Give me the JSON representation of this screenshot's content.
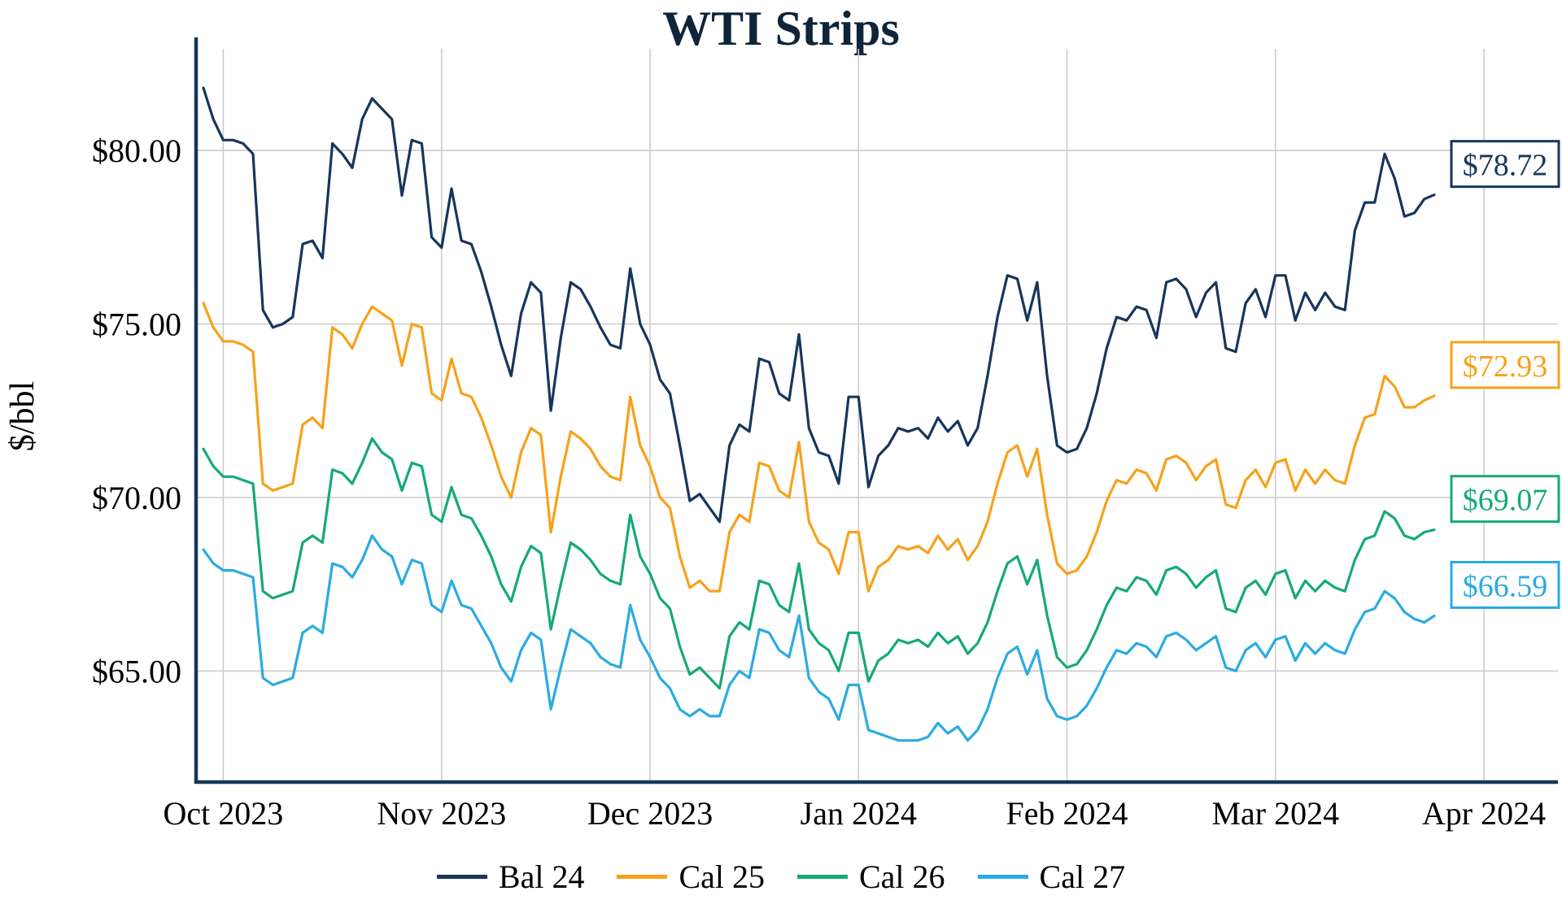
{
  "chart_data": {
    "type": "line",
    "title": "WTI Strips",
    "ylabel": "$/bbl",
    "xlabel": "",
    "grid": true,
    "legend_position": "bottom",
    "axis_color": "#16365c",
    "grid_color": "#cccccc",
    "ylim": [
      61.8,
      82.93
    ],
    "y_ticks": [
      65,
      70,
      75,
      80
    ],
    "y_tick_labels": [
      "$65.00",
      "$70.00",
      "$75.00",
      "$80.00"
    ],
    "x_tick_labels": [
      "Oct 2023",
      "Nov 2023",
      "Dec 2023",
      "Jan 2024",
      "Feb 2024",
      "Mar 2024",
      "Apr 2024"
    ],
    "x_tick_index": [
      2,
      24,
      45,
      66,
      87,
      108,
      129
    ],
    "x_unit": "trading-day index, Oct 2023 - Mar 2024",
    "series": [
      {
        "id": "bal-24",
        "name": "Bal 24",
        "color": "#16365c",
        "end_label": "$78.72",
        "last_value": 78.72,
        "values": [
          81.8,
          80.9,
          80.3,
          80.3,
          80.2,
          79.9,
          75.4,
          74.9,
          75.0,
          75.2,
          77.3,
          77.4,
          76.9,
          80.2,
          79.9,
          79.5,
          80.9,
          81.5,
          81.2,
          80.9,
          78.7,
          80.3,
          80.2,
          77.5,
          77.2,
          78.9,
          77.4,
          77.3,
          76.5,
          75.5,
          74.4,
          73.5,
          75.3,
          76.2,
          75.9,
          72.5,
          74.6,
          76.2,
          76.0,
          75.5,
          74.9,
          74.4,
          74.3,
          76.6,
          75.0,
          74.4,
          73.4,
          73.0,
          71.5,
          69.9,
          70.1,
          69.7,
          69.3,
          71.5,
          72.1,
          71.9,
          74.0,
          73.9,
          73.0,
          72.8,
          74.7,
          72.0,
          71.3,
          71.2,
          70.4,
          72.9,
          72.9,
          70.3,
          71.2,
          71.5,
          72.0,
          71.9,
          72.0,
          71.7,
          72.3,
          71.9,
          72.2,
          71.5,
          72.0,
          73.5,
          75.2,
          76.4,
          76.3,
          75.1,
          76.2,
          73.5,
          71.5,
          71.3,
          71.4,
          72.0,
          73.0,
          74.3,
          75.2,
          75.1,
          75.5,
          75.4,
          74.6,
          76.2,
          76.3,
          76.0,
          75.2,
          75.9,
          76.2,
          74.3,
          74.2,
          75.6,
          76.0,
          75.2,
          76.4,
          76.4,
          75.1,
          75.9,
          75.4,
          75.9,
          75.5,
          75.4,
          77.7,
          78.5,
          78.5,
          79.9,
          79.2,
          78.1,
          78.2,
          78.6,
          78.72
        ]
      },
      {
        "id": "cal-25",
        "name": "Cal 25",
        "color": "#f7a11a",
        "end_label": "$72.93",
        "last_value": 72.93,
        "values": [
          75.6,
          74.9,
          74.5,
          74.5,
          74.4,
          74.2,
          70.4,
          70.2,
          70.3,
          70.4,
          72.1,
          72.3,
          72.0,
          74.9,
          74.7,
          74.3,
          75.0,
          75.5,
          75.3,
          75.1,
          73.8,
          75.0,
          74.9,
          73.0,
          72.8,
          74.0,
          73.0,
          72.9,
          72.3,
          71.5,
          70.6,
          70.0,
          71.3,
          72.0,
          71.8,
          69.0,
          70.6,
          71.9,
          71.7,
          71.4,
          70.9,
          70.6,
          70.5,
          72.9,
          71.5,
          70.9,
          70.0,
          69.7,
          68.3,
          67.4,
          67.6,
          67.3,
          67.3,
          69.0,
          69.5,
          69.3,
          71.0,
          70.9,
          70.2,
          70.0,
          71.6,
          69.3,
          68.7,
          68.5,
          67.8,
          69.0,
          69.0,
          67.3,
          68.0,
          68.2,
          68.6,
          68.5,
          68.6,
          68.4,
          68.9,
          68.5,
          68.8,
          68.2,
          68.6,
          69.3,
          70.4,
          71.3,
          71.5,
          70.6,
          71.4,
          69.5,
          68.1,
          67.8,
          67.9,
          68.3,
          69.0,
          69.9,
          70.5,
          70.4,
          70.8,
          70.7,
          70.2,
          71.1,
          71.2,
          71.0,
          70.5,
          70.9,
          71.1,
          69.8,
          69.7,
          70.5,
          70.8,
          70.3,
          71.0,
          71.1,
          70.2,
          70.8,
          70.4,
          70.8,
          70.5,
          70.4,
          71.5,
          72.3,
          72.4,
          73.5,
          73.2,
          72.6,
          72.6,
          72.8,
          72.93
        ]
      },
      {
        "id": "cal-26",
        "name": "Cal 26",
        "color": "#15a97a",
        "end_label": "$69.07",
        "last_value": 69.07,
        "values": [
          71.4,
          70.9,
          70.6,
          70.6,
          70.5,
          70.4,
          67.3,
          67.1,
          67.2,
          67.3,
          68.7,
          68.9,
          68.7,
          70.8,
          70.7,
          70.4,
          71.0,
          71.7,
          71.3,
          71.1,
          70.2,
          71.0,
          70.9,
          69.5,
          69.3,
          70.3,
          69.5,
          69.4,
          68.9,
          68.3,
          67.5,
          67.0,
          68.0,
          68.6,
          68.4,
          66.2,
          67.5,
          68.7,
          68.5,
          68.2,
          67.8,
          67.6,
          67.5,
          69.5,
          68.3,
          67.8,
          67.1,
          66.8,
          65.7,
          64.9,
          65.1,
          64.8,
          64.5,
          66.0,
          66.4,
          66.2,
          67.6,
          67.5,
          66.9,
          66.7,
          68.1,
          66.2,
          65.8,
          65.6,
          65.0,
          66.1,
          66.1,
          64.7,
          65.3,
          65.5,
          65.9,
          65.8,
          65.9,
          65.7,
          66.1,
          65.8,
          66.0,
          65.5,
          65.8,
          66.4,
          67.3,
          68.1,
          68.3,
          67.5,
          68.2,
          66.6,
          65.4,
          65.1,
          65.2,
          65.6,
          66.2,
          66.9,
          67.4,
          67.3,
          67.7,
          67.6,
          67.2,
          67.9,
          68.0,
          67.8,
          67.4,
          67.7,
          67.9,
          66.8,
          66.7,
          67.4,
          67.6,
          67.2,
          67.8,
          67.9,
          67.1,
          67.6,
          67.3,
          67.6,
          67.4,
          67.3,
          68.2,
          68.8,
          68.9,
          69.6,
          69.4,
          68.9,
          68.8,
          69.0,
          69.07
        ]
      },
      {
        "id": "cal-27",
        "name": "Cal 27",
        "color": "#2aabe2",
        "end_label": "$66.59",
        "last_value": 66.59,
        "values": [
          68.5,
          68.1,
          67.9,
          67.9,
          67.8,
          67.7,
          64.8,
          64.6,
          64.7,
          64.8,
          66.1,
          66.3,
          66.1,
          68.1,
          68.0,
          67.7,
          68.2,
          68.9,
          68.5,
          68.3,
          67.5,
          68.2,
          68.1,
          66.9,
          66.7,
          67.6,
          66.9,
          66.8,
          66.3,
          65.8,
          65.1,
          64.7,
          65.6,
          66.1,
          65.9,
          63.9,
          65.1,
          66.2,
          66.0,
          65.8,
          65.4,
          65.2,
          65.1,
          66.9,
          65.9,
          65.4,
          64.8,
          64.5,
          63.9,
          63.7,
          63.9,
          63.7,
          63.7,
          64.6,
          65.0,
          64.8,
          66.2,
          66.1,
          65.6,
          65.4,
          66.6,
          64.8,
          64.4,
          64.2,
          63.6,
          64.6,
          64.6,
          63.3,
          63.2,
          63.1,
          63.0,
          63.0,
          63.0,
          63.1,
          63.5,
          63.2,
          63.4,
          63.0,
          63.3,
          63.9,
          64.8,
          65.5,
          65.7,
          64.9,
          65.6,
          64.2,
          63.7,
          63.6,
          63.7,
          64.0,
          64.5,
          65.1,
          65.6,
          65.5,
          65.8,
          65.7,
          65.4,
          66.0,
          66.1,
          65.9,
          65.6,
          65.8,
          66.0,
          65.1,
          65.0,
          65.6,
          65.8,
          65.4,
          65.9,
          66.0,
          65.3,
          65.8,
          65.5,
          65.8,
          65.6,
          65.5,
          66.2,
          66.7,
          66.8,
          67.3,
          67.1,
          66.7,
          66.5,
          66.4,
          66.59
        ]
      }
    ]
  }
}
